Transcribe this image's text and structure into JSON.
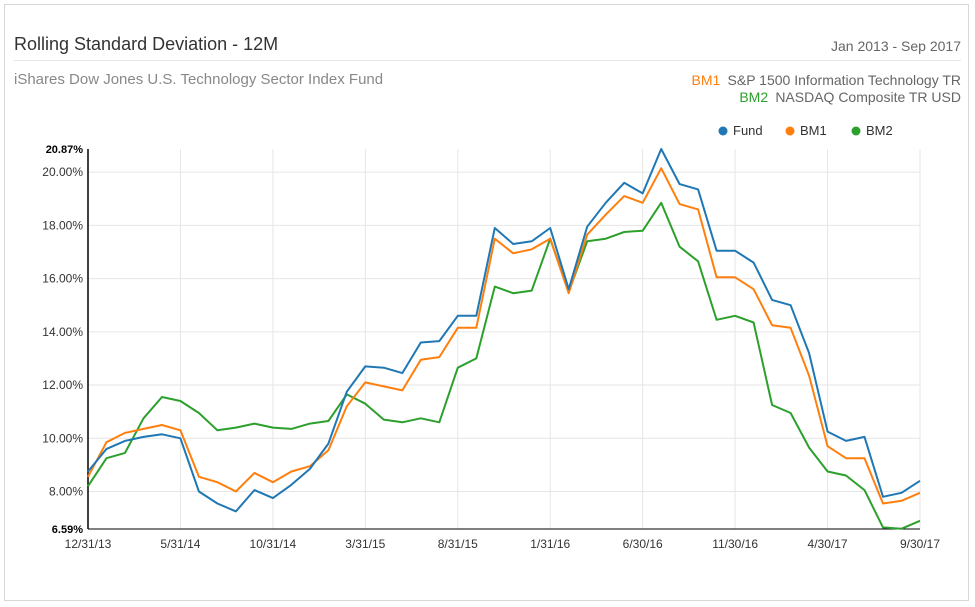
{
  "header": {
    "title": "Rolling Standard Deviation - 12M",
    "date_range": "Jan 2013 - Sep 2017",
    "subtitle": "iShares Dow Jones U.S. Technology Sector Index Fund"
  },
  "benchmarks": [
    {
      "code": "BM1",
      "name": "S&P 1500 Information Technology TR",
      "color": "#ff7f0e"
    },
    {
      "code": "BM2",
      "name": "NASDAQ Composite TR USD",
      "color": "#2ca02c"
    }
  ],
  "chart_data": {
    "type": "line",
    "title": "Rolling Standard Deviation - 12M",
    "xlabel": "",
    "ylabel": "",
    "ylim": [
      6.59,
      20.87
    ],
    "grid": true,
    "legend_position": "top-right",
    "y_ticks": [
      "8.00%",
      "10.00%",
      "12.00%",
      "14.00%",
      "16.00%",
      "18.00%",
      "20.00%"
    ],
    "y_tick_values": [
      8,
      10,
      12,
      14,
      16,
      18,
      20
    ],
    "y_bounds_labels": [
      "6.59%",
      "20.87%"
    ],
    "x_ticks": [
      "12/31/13",
      "5/31/14",
      "10/31/14",
      "3/31/15",
      "8/31/15",
      "1/31/16",
      "6/30/16",
      "11/30/16",
      "4/30/17",
      "9/30/17"
    ],
    "x_tick_index": [
      0,
      5,
      10,
      15,
      20,
      25,
      30,
      35,
      40,
      45
    ],
    "n_points": 46,
    "series": [
      {
        "name": "Fund",
        "color": "#1f77b4",
        "values": [
          8.75,
          9.6,
          9.9,
          10.05,
          10.15,
          10.0,
          8.0,
          7.55,
          7.25,
          8.05,
          7.75,
          8.25,
          8.85,
          9.8,
          11.75,
          12.7,
          12.65,
          12.45,
          13.6,
          13.65,
          14.6,
          14.6,
          17.9,
          17.3,
          17.4,
          17.9,
          15.6,
          17.95,
          18.85,
          19.6,
          19.2,
          20.87,
          19.55,
          19.35,
          17.05,
          17.05,
          16.6,
          15.2,
          15.0,
          13.2,
          10.25,
          9.9,
          10.05,
          7.8,
          7.95,
          8.4
        ]
      },
      {
        "name": "BM1",
        "color": "#ff7f0e",
        "values": [
          8.55,
          9.85,
          10.2,
          10.35,
          10.5,
          10.3,
          8.55,
          8.35,
          8.0,
          8.7,
          8.35,
          8.75,
          8.95,
          9.55,
          11.2,
          12.1,
          11.95,
          11.8,
          12.95,
          13.05,
          14.15,
          14.15,
          17.5,
          16.95,
          17.1,
          17.5,
          15.45,
          17.65,
          18.4,
          19.1,
          18.85,
          20.15,
          18.8,
          18.6,
          16.05,
          16.05,
          15.6,
          14.25,
          14.15,
          12.35,
          9.7,
          9.25,
          9.25,
          7.55,
          7.65,
          7.95
        ]
      },
      {
        "name": "BM2",
        "color": "#2ca02c",
        "values": [
          8.2,
          9.25,
          9.45,
          10.75,
          11.55,
          11.4,
          10.95,
          10.3,
          10.4,
          10.55,
          10.4,
          10.35,
          10.55,
          10.65,
          11.65,
          11.3,
          10.7,
          10.6,
          10.75,
          10.6,
          12.65,
          13.0,
          15.7,
          15.45,
          15.55,
          17.5,
          15.5,
          17.4,
          17.5,
          17.75,
          17.8,
          18.85,
          17.2,
          16.65,
          14.45,
          14.6,
          14.35,
          11.25,
          10.95,
          9.65,
          8.75,
          8.6,
          8.05,
          6.65,
          6.6,
          6.9
        ]
      }
    ]
  }
}
